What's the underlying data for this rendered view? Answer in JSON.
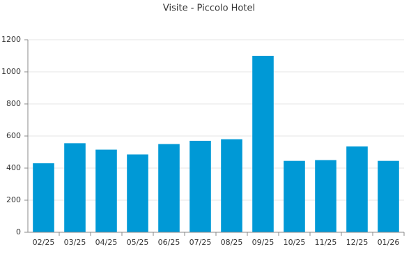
{
  "chart_data": {
    "type": "bar",
    "title": "Visite - Piccolo Hotel",
    "categories": [
      "02/25",
      "03/25",
      "04/25",
      "05/25",
      "06/25",
      "07/25",
      "08/25",
      "09/25",
      "10/25",
      "11/25",
      "12/25",
      "01/26"
    ],
    "values": [
      430,
      555,
      515,
      485,
      550,
      570,
      580,
      1100,
      445,
      450,
      535,
      445
    ],
    "color": "#0099d6",
    "ylim": [
      0,
      1200
    ],
    "yticks": [
      0,
      200,
      400,
      600,
      800,
      1000,
      1200
    ],
    "grid": true
  }
}
